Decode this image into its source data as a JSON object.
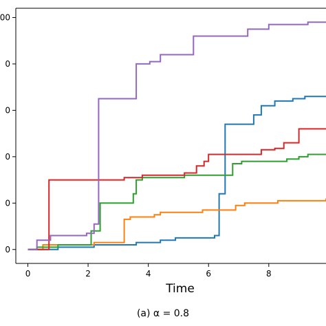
{
  "chart_data": {
    "type": "line",
    "xlabel": "Time",
    "ylabel": "",
    "xlim": [
      -0.4,
      9.9
    ],
    "ylim": [
      -0.3,
      5.2
    ],
    "x_ticks": [
      0,
      2,
      4,
      6,
      8
    ],
    "y_ticks": [
      0,
      1,
      2,
      3,
      4,
      5
    ],
    "y_tick_labels": [
      "0",
      "0",
      "0",
      "0",
      "0",
      "00"
    ],
    "grid": false,
    "legend": "none",
    "series": [
      {
        "color": "#1f77b4",
        "step_points": [
          [
            0,
            0
          ],
          [
            1.0,
            0.05
          ],
          [
            2.2,
            0.1
          ],
          [
            3.6,
            0.15
          ],
          [
            4.4,
            0.2
          ],
          [
            4.9,
            0.25
          ],
          [
            6.2,
            0.3
          ],
          [
            6.35,
            1.2
          ],
          [
            6.55,
            2.7
          ],
          [
            7.5,
            2.9
          ],
          [
            7.75,
            3.1
          ],
          [
            8.2,
            3.2
          ],
          [
            8.8,
            3.25
          ],
          [
            9.2,
            3.3
          ],
          [
            9.9,
            3.3
          ]
        ]
      },
      {
        "color": "#ff7f0e",
        "step_points": [
          [
            0,
            0
          ],
          [
            0.5,
            0.1
          ],
          [
            2.2,
            0.15
          ],
          [
            3.2,
            0.65
          ],
          [
            3.4,
            0.7
          ],
          [
            4.2,
            0.75
          ],
          [
            4.4,
            0.8
          ],
          [
            5.8,
            0.85
          ],
          [
            6.9,
            0.95
          ],
          [
            7.2,
            1.0
          ],
          [
            8.3,
            1.05
          ],
          [
            9.9,
            1.1
          ]
        ]
      },
      {
        "color": "#2ca02c",
        "step_points": [
          [
            0,
            0
          ],
          [
            0.3,
            0.05
          ],
          [
            1.0,
            0.1
          ],
          [
            2.1,
            0.4
          ],
          [
            2.4,
            1.0
          ],
          [
            3.5,
            1.2
          ],
          [
            3.6,
            1.5
          ],
          [
            3.8,
            1.55
          ],
          [
            5.2,
            1.6
          ],
          [
            6.8,
            1.85
          ],
          [
            7.1,
            1.9
          ],
          [
            8.6,
            1.95
          ],
          [
            9.0,
            2.0
          ],
          [
            9.3,
            2.05
          ],
          [
            9.9,
            2.05
          ]
        ]
      },
      {
        "color": "#d62728",
        "step_points": [
          [
            0,
            0
          ],
          [
            0.7,
            1.5
          ],
          [
            3.2,
            1.55
          ],
          [
            3.8,
            1.6
          ],
          [
            5.2,
            1.65
          ],
          [
            5.6,
            1.8
          ],
          [
            5.85,
            1.9
          ],
          [
            6.0,
            2.05
          ],
          [
            7.4,
            2.05
          ],
          [
            7.75,
            2.15
          ],
          [
            8.2,
            2.18
          ],
          [
            8.5,
            2.3
          ],
          [
            9.0,
            2.6
          ],
          [
            9.9,
            2.6
          ]
        ]
      },
      {
        "color": "#9467bd",
        "step_points": [
          [
            0,
            0
          ],
          [
            0.3,
            0.2
          ],
          [
            0.75,
            0.3
          ],
          [
            1.95,
            0.35
          ],
          [
            2.2,
            0.55
          ],
          [
            2.35,
            3.25
          ],
          [
            3.6,
            4.0
          ],
          [
            4.05,
            4.05
          ],
          [
            4.4,
            4.2
          ],
          [
            5.5,
            4.6
          ],
          [
            7.3,
            4.75
          ],
          [
            8.0,
            4.85
          ],
          [
            9.3,
            4.9
          ],
          [
            9.9,
            4.9
          ]
        ]
      }
    ]
  },
  "caption": "(a)  α = 0.8"
}
